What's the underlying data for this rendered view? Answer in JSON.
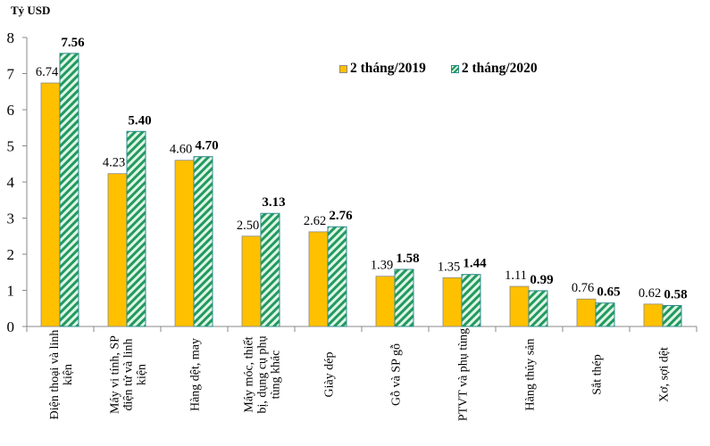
{
  "chart_data": {
    "type": "bar",
    "title": "",
    "ylabel": "Tỷ USD",
    "xlabel": "",
    "ylim": [
      0,
      8
    ],
    "yticks": [
      0,
      1,
      2,
      3,
      4,
      5,
      6,
      7,
      8
    ],
    "grid": false,
    "legend_position": "top-right",
    "categories": [
      [
        "Điện thoại và linh",
        "kiện"
      ],
      [
        "Máy vi tính, SP",
        "điện tử và linh",
        "kiện"
      ],
      [
        "Hàng dệt, may"
      ],
      [
        "Máy móc, thiết",
        "bị, dụng cụ phụ",
        "tùng khác"
      ],
      [
        "Giày dép"
      ],
      [
        "Gỗ và SP gỗ"
      ],
      [
        "PTVT và phụ tùng"
      ],
      [
        "Hàng thủy sản"
      ],
      [
        "Sắt thép"
      ],
      [
        "Xơ, sợi dệt"
      ]
    ],
    "series": [
      {
        "name": "2 tháng/2019",
        "color": "#ffc000",
        "pattern": "solid",
        "values": [
          6.74,
          4.23,
          4.6,
          2.5,
          2.62,
          1.39,
          1.35,
          1.11,
          0.76,
          0.62
        ],
        "labels": [
          "6.74",
          "4.23",
          "4.60",
          "2.50",
          "2.62",
          "1.39",
          "1.35",
          "1.11",
          "0.76",
          "0.62"
        ]
      },
      {
        "name": "2 tháng/2020",
        "color": "#239a5c",
        "pattern": "hatch",
        "values": [
          7.56,
          5.4,
          4.7,
          3.13,
          2.76,
          1.58,
          1.44,
          0.99,
          0.65,
          0.58
        ],
        "labels": [
          "7.56",
          "5.40",
          "4.70",
          "3.13",
          "2.76",
          "1.58",
          "1.44",
          "0.99",
          "0.65",
          "0.58"
        ]
      }
    ]
  }
}
